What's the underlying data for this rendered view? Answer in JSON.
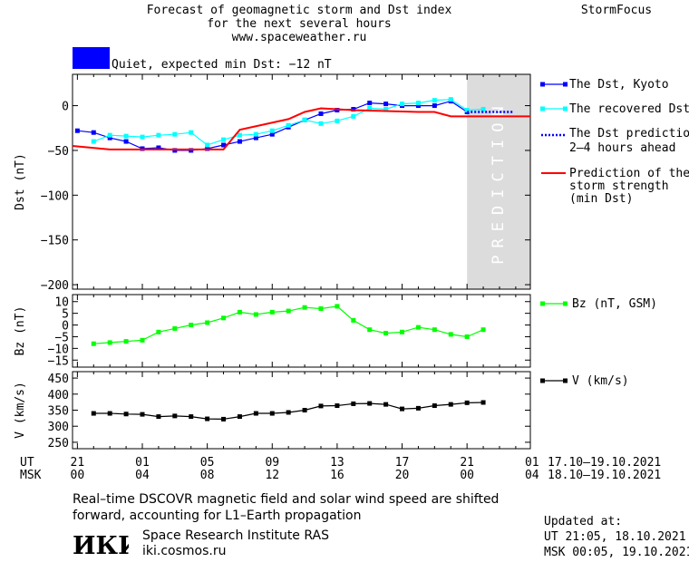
{
  "header": {
    "title_lines": [
      "Forecast of geomagnetic storm and Dst index",
      "for the next several hours",
      "www.spaceweather.ru"
    ],
    "brand": "StormFocus"
  },
  "status": {
    "text": "Quiet, expected min Dst: −12 nT",
    "color": "#0000ff"
  },
  "legend": {
    "dst_kyoto": "The Dst, Kyoto",
    "dst_recovered": "The recovered Dst",
    "dst_prediction": [
      "The Dst prediction",
      "2–4 hours ahead"
    ],
    "storm_strength": [
      "Prediction of the",
      "storm strength",
      "(min Dst)"
    ],
    "bz": "Bz (nT, GSM)",
    "v": "V (km/s)"
  },
  "prediction_label": "PREDICTION",
  "time_axis": {
    "ut_label": "UT",
    "msk_label": "MSK",
    "ut_ticks": [
      "21",
      "01",
      "05",
      "09",
      "13",
      "17",
      "21",
      "01"
    ],
    "msk_ticks": [
      "00",
      "04",
      "08",
      "12",
      "16",
      "20",
      "00",
      "04"
    ],
    "ut_range": "17.10–19.10.2021",
    "msk_range": "18.10–19.10.2021"
  },
  "chart_data": [
    {
      "type": "line",
      "ylabel": "Dst (nT)",
      "ylim": [
        -205,
        35
      ],
      "yticks": [
        0,
        -50,
        -100,
        -150,
        -200
      ],
      "xlim": [
        -0.3,
        27.9
      ],
      "prediction_region": [
        24.0,
        27.9
      ],
      "series": [
        {
          "name": "The Dst, Kyoto",
          "color": "#0000ff",
          "marker": "square",
          "x": [
            0,
            1,
            2,
            3,
            4,
            5,
            6,
            7,
            8,
            9,
            10,
            11,
            12,
            13,
            14,
            15,
            16,
            17,
            18,
            19,
            20,
            21,
            22,
            23,
            24
          ],
          "y": [
            -28,
            -30,
            -36,
            -40,
            -48,
            -47,
            -50,
            -50,
            -48,
            -44,
            -40,
            -36,
            -32,
            -24,
            -16,
            -9,
            -5,
            -4,
            3,
            2,
            0,
            0,
            0,
            5,
            -7
          ]
        },
        {
          "name": "The recovered Dst",
          "color": "#00ffff",
          "marker": "square",
          "x": [
            1,
            2,
            3,
            4,
            5,
            6,
            7,
            8,
            9,
            10,
            11,
            12,
            13,
            14,
            15,
            16,
            17,
            18,
            19,
            20,
            21,
            22,
            23,
            24,
            25
          ],
          "y": [
            -40,
            -33,
            -34,
            -35,
            -33,
            -32,
            -30,
            -44,
            -38,
            -33,
            -32,
            -28,
            -22,
            -16,
            -20,
            -17,
            -12,
            -3,
            -4,
            2,
            3,
            6,
            7,
            -5,
            -4
          ]
        },
        {
          "name": "The Dst prediction 2–4 hours ahead",
          "color": "#0000ff",
          "dash": true,
          "x": [
            24,
            26.8
          ],
          "y": [
            -7,
            -7
          ]
        },
        {
          "name": "Prediction of the storm strength (min Dst)",
          "color": "#ff0000",
          "x": [
            -0.3,
            2,
            4,
            6,
            8,
            9,
            10,
            13,
            14,
            15,
            16,
            17,
            19,
            21,
            22,
            23,
            27.9
          ],
          "y": [
            -45,
            -49,
            -49,
            -49,
            -49,
            -49,
            -27,
            -15,
            -7,
            -3,
            -4,
            -5,
            -6,
            -7,
            -7,
            -12,
            -12
          ]
        }
      ]
    },
    {
      "type": "line",
      "ylabel": "Bz (nT)",
      "ylim": [
        -18,
        13
      ],
      "yticks": [
        10,
        5,
        0,
        -5,
        -10,
        -15
      ],
      "xlim": [
        -0.3,
        27.9
      ],
      "series": [
        {
          "name": "Bz (nT, GSM)",
          "color": "#00ff00",
          "marker": "square",
          "x": [
            1,
            2,
            3,
            4,
            5,
            6,
            7,
            8,
            9,
            10,
            11,
            12,
            13,
            14,
            15,
            16,
            17,
            18,
            19,
            20,
            21,
            22,
            23,
            24,
            25
          ],
          "y": [
            -8,
            -7.5,
            -7,
            -6.5,
            -3,
            -1.5,
            0,
            1,
            3,
            5.5,
            4.5,
            5.5,
            6,
            7.5,
            7,
            8,
            2,
            -2,
            -3.5,
            -3,
            -1,
            -2,
            -4,
            -5,
            -2
          ]
        }
      ]
    },
    {
      "type": "line",
      "ylabel": "V (km/s)",
      "ylim": [
        230,
        470
      ],
      "yticks": [
        450,
        400,
        350,
        300,
        250
      ],
      "xlim": [
        -0.3,
        27.9
      ],
      "series": [
        {
          "name": "V (km/s)",
          "color": "#000000",
          "marker": "square",
          "x": [
            1,
            2,
            3,
            4,
            5,
            6,
            7,
            8,
            9,
            10,
            11,
            12,
            13,
            14,
            15,
            16,
            17,
            18,
            19,
            20,
            21,
            22,
            23,
            24,
            25
          ],
          "y": [
            340,
            340,
            338,
            337,
            330,
            332,
            330,
            323,
            322,
            330,
            340,
            340,
            343,
            350,
            363,
            364,
            370,
            371,
            368,
            354,
            356,
            364,
            368,
            373,
            374
          ]
        }
      ]
    }
  ],
  "note": "Real–time DSCOVR magnetic field and solar wind speed are shifted forward, accounting for L1–Earth propagation",
  "institute": {
    "name": "Space Research Institute RAS",
    "url": "iki.cosmos.ru",
    "logo_text": "ИКИ"
  },
  "updated": {
    "label": "Updated at:",
    "ut": "UT  21:05, 18.10.2021",
    "msk": "MSK 00:05, 19.10.2021"
  }
}
